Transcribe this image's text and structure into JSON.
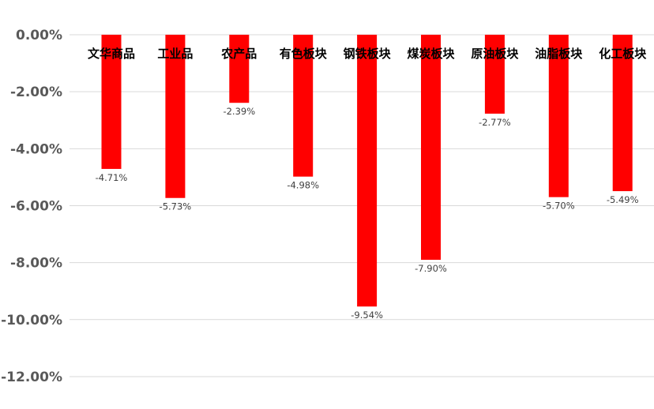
{
  "chart_data": {
    "type": "bar",
    "title": "",
    "xlabel": "",
    "ylabel": "",
    "categories": [
      "文华商品",
      "工业品",
      "农产品",
      "有色板块",
      "钢铁板块",
      "煤炭板块",
      "原油板块",
      "油脂板块",
      "化工板块"
    ],
    "values": [
      -4.71,
      -5.73,
      -2.39,
      -4.98,
      -9.54,
      -7.9,
      -2.77,
      -5.7,
      -5.49
    ],
    "data_labels": [
      "-4.71%",
      "-5.73%",
      "-2.39%",
      "-4.98%",
      "-9.54%",
      "-7.90%",
      "-2.77%",
      "-5.70%",
      "-5.49%"
    ],
    "y_ticks": [
      0,
      -2,
      -4,
      -6,
      -8,
      -10,
      -12
    ],
    "y_tick_labels": [
      "0.00%",
      "-2.00%",
      "-4.00%",
      "-6.00%",
      "-8.00%",
      "-10.00%",
      "-12.00%"
    ],
    "ylim": [
      -12,
      0
    ],
    "grid": true,
    "legend": "none",
    "bar_color": "#ff0000",
    "grid_color": "#d9d9d9"
  }
}
